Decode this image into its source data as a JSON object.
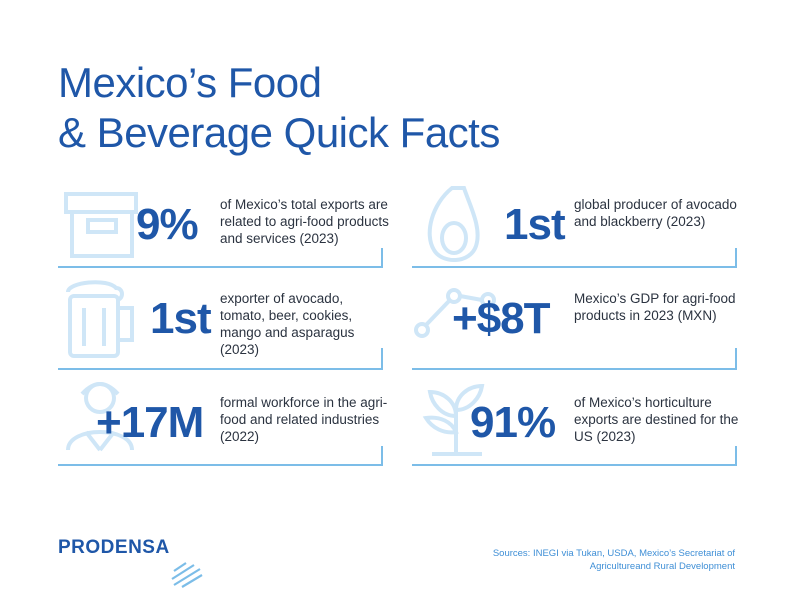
{
  "title": {
    "line1": "Mexico’s Food",
    "line2": "& Beverage Quick Facts"
  },
  "facts": [
    {
      "icon": "container-icon",
      "value": "9%",
      "text": "of Mexico’s total exports are related to agri-food products and services (2023)"
    },
    {
      "icon": "avocado-icon",
      "value": "1st",
      "text": "global producer of avocado and blackberry (2023)"
    },
    {
      "icon": "beer-mug-icon",
      "value": "1st",
      "text": "exporter of avocado, tomato, beer, cookies, mango and asparagus (2023)"
    },
    {
      "icon": "growth-chart-icon",
      "value": "+$8T",
      "text": "Mexico’s GDP for agri-food products in 2023 (MXN)"
    },
    {
      "icon": "worker-icon",
      "value": "+17M",
      "text": "formal workforce in the agri-food and related industries (2022)"
    },
    {
      "icon": "sprout-icon",
      "value": "91%",
      "text": "of Mexico’s horticulture exports are destined for the US (2023)"
    }
  ],
  "logo": {
    "text": "PRODENSA"
  },
  "sources": "Sources: INEGI via Tukan, USDA, Mexico’s Secretariat of Agricultureand Rural Development",
  "colors": {
    "primary": "#1f57a8",
    "accent": "#7cbde8",
    "icon": "#cfe6f7",
    "source_text": "#3f8fd6"
  }
}
